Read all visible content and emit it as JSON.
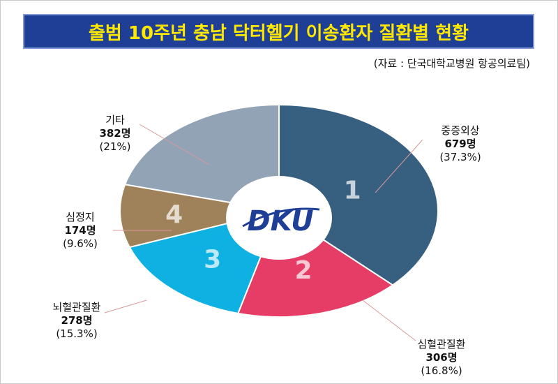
{
  "header": {
    "title": "출범 10주년 충남 닥터헬기 이송환자 질환별 현황",
    "source": "(자료 : 단국대학교병원 항공의료팀)"
  },
  "logo_text": "DKU",
  "colors": {
    "banner_bg": "#1f3f97",
    "banner_text": "#ffe800",
    "leader_line": "#d89a9a"
  },
  "chart_data": {
    "type": "pie",
    "title": "출범 10주년 충남 닥터헬기 이송환자 질환별 현황",
    "unit": "명",
    "slices": [
      {
        "rank": "1",
        "label": "중증외상",
        "count": "679명",
        "value": 679,
        "percent": "(37.3%)",
        "color": "#375f80"
      },
      {
        "rank": "2",
        "label": "심혈관질환",
        "count": "306명",
        "value": 306,
        "percent": "(16.8%)",
        "color": "#e63d66"
      },
      {
        "rank": "3",
        "label": "뇌혈관질환",
        "count": "278명",
        "value": 278,
        "percent": "(15.3%)",
        "color": "#0fb0e2"
      },
      {
        "rank": "4",
        "label": "심정지",
        "count": "174명",
        "value": 174,
        "percent": "(9.6%)",
        "color": "#a0825a"
      },
      {
        "rank": "",
        "label": "기타",
        "count": "382명",
        "value": 382,
        "percent": "(21%)",
        "color": "#93a3b6"
      }
    ]
  }
}
